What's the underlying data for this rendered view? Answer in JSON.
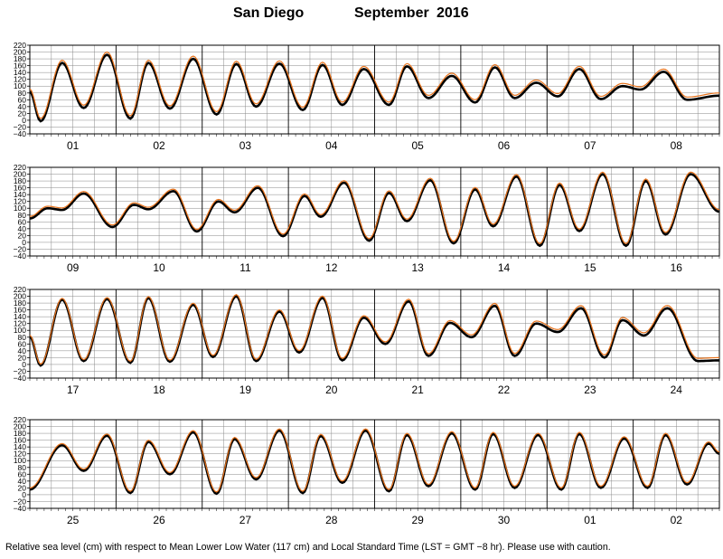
{
  "header": {
    "location": "San Diego",
    "month": "September",
    "year": "2016"
  },
  "footer": {
    "caption": "Relative sea level (cm) with respect to Mean Lower Low Water (117 cm) and Local Standard Time (LST = GMT −8 hr).  Please use with caution."
  },
  "colors": {
    "observed": "#000000",
    "predicted": "#e8731c",
    "grid": "#888888"
  },
  "chart_data": {
    "type": "line",
    "ylim": [
      -40,
      220
    ],
    "yticks": [
      -40,
      -20,
      0,
      20,
      40,
      60,
      80,
      100,
      120,
      140,
      160,
      180,
      200,
      220
    ],
    "ytick_labels": [
      "−40",
      "−20",
      "0",
      "20",
      "40",
      "60",
      "80",
      "100",
      "120",
      "140",
      "160",
      "180",
      "200",
      "220"
    ],
    "grid": true,
    "series_names": [
      "observed",
      "predicted"
    ],
    "panels": [
      {
        "days": [
          "01",
          "02",
          "03",
          "04",
          "05",
          "06",
          "07",
          "08"
        ],
        "extrema": [
          [
            0,
            84
          ],
          [
            3,
            -3
          ],
          [
            9,
            168
          ],
          [
            15,
            36
          ],
          [
            21.5,
            192
          ],
          [
            28,
            5
          ],
          [
            33,
            168
          ],
          [
            39,
            34
          ],
          [
            45.5,
            180
          ],
          [
            52,
            17
          ],
          [
            57.5,
            165
          ],
          [
            63,
            40
          ],
          [
            69.5,
            166
          ],
          [
            76,
            30
          ],
          [
            81.5,
            162
          ],
          [
            87,
            45
          ],
          [
            93,
            150
          ],
          [
            100,
            45
          ],
          [
            105,
            158
          ],
          [
            111,
            65
          ],
          [
            117.5,
            130
          ],
          [
            124,
            52
          ],
          [
            129.5,
            155
          ],
          [
            135,
            65
          ],
          [
            141,
            110
          ],
          [
            147,
            70
          ],
          [
            153,
            150
          ],
          [
            159,
            62
          ],
          [
            165,
            100
          ],
          [
            170,
            90
          ],
          [
            176.5,
            142
          ],
          [
            183,
            60
          ],
          [
            192,
            72
          ]
        ],
        "pred_offset": [
          [
            0,
            8
          ],
          [
            192,
            8
          ]
        ]
      },
      {
        "days": [
          "09",
          "10",
          "11",
          "12",
          "13",
          "14",
          "15",
          "16"
        ],
        "extrema": [
          [
            0,
            70
          ],
          [
            5,
            100
          ],
          [
            9,
            95
          ],
          [
            15,
            143
          ],
          [
            23,
            45
          ],
          [
            29,
            110
          ],
          [
            33,
            97
          ],
          [
            40,
            150
          ],
          [
            46.5,
            32
          ],
          [
            52.5,
            120
          ],
          [
            57,
            88
          ],
          [
            63.5,
            160
          ],
          [
            70.5,
            18
          ],
          [
            76.5,
            136
          ],
          [
            81,
            75
          ],
          [
            87.5,
            175
          ],
          [
            94.5,
            5
          ],
          [
            100,
            145
          ],
          [
            105,
            62
          ],
          [
            111.5,
            182
          ],
          [
            118,
            -3
          ],
          [
            124,
            155
          ],
          [
            129,
            47
          ],
          [
            135.5,
            193
          ],
          [
            142,
            -10
          ],
          [
            147.5,
            168
          ],
          [
            153,
            33
          ],
          [
            159.5,
            200
          ],
          [
            166,
            -10
          ],
          [
            171.5,
            180
          ],
          [
            177,
            23
          ],
          [
            184,
            200
          ],
          [
            192,
            90
          ]
        ],
        "pred_offset": [
          [
            0,
            6
          ],
          [
            192,
            6
          ]
        ]
      },
      {
        "days": [
          "17",
          "18",
          "19",
          "20",
          "21",
          "22",
          "23",
          "24"
        ],
        "extrema": [
          [
            0,
            82
          ],
          [
            3,
            -3
          ],
          [
            9,
            190
          ],
          [
            15,
            10
          ],
          [
            21.5,
            192
          ],
          [
            28,
            5
          ],
          [
            33,
            195
          ],
          [
            39,
            8
          ],
          [
            45.5,
            175
          ],
          [
            51,
            22
          ],
          [
            57.5,
            200
          ],
          [
            63,
            10
          ],
          [
            69.5,
            155
          ],
          [
            75,
            35
          ],
          [
            81.5,
            195
          ],
          [
            87,
            12
          ],
          [
            93,
            137
          ],
          [
            99,
            60
          ],
          [
            105.5,
            185
          ],
          [
            111,
            25
          ],
          [
            117,
            122
          ],
          [
            123,
            80
          ],
          [
            129.5,
            172
          ],
          [
            135,
            25
          ],
          [
            141,
            120
          ],
          [
            147,
            95
          ],
          [
            153.5,
            165
          ],
          [
            160,
            20
          ],
          [
            165,
            130
          ],
          [
            171,
            85
          ],
          [
            177.5,
            165
          ],
          [
            186,
            10
          ],
          [
            192,
            12
          ]
        ],
        "pred_offset": [
          [
            0,
            4
          ],
          [
            192,
            8
          ]
        ]
      },
      {
        "days": [
          "25",
          "26",
          "27",
          "28",
          "29",
          "30",
          "01",
          "02"
        ],
        "extrema": [
          [
            0,
            15
          ],
          [
            9,
            145
          ],
          [
            15,
            70
          ],
          [
            21.5,
            173
          ],
          [
            28,
            5
          ],
          [
            33,
            155
          ],
          [
            39,
            60
          ],
          [
            45.5,
            183
          ],
          [
            52,
            3
          ],
          [
            57,
            163
          ],
          [
            63,
            45
          ],
          [
            69.5,
            188
          ],
          [
            76,
            5
          ],
          [
            81,
            172
          ],
          [
            87,
            35
          ],
          [
            93.5,
            188
          ],
          [
            100,
            10
          ],
          [
            105,
            175
          ],
          [
            111,
            25
          ],
          [
            117.5,
            180
          ],
          [
            124,
            15
          ],
          [
            129,
            178
          ],
          [
            135,
            20
          ],
          [
            141.5,
            175
          ],
          [
            148,
            15
          ],
          [
            153,
            178
          ],
          [
            159,
            20
          ],
          [
            165.5,
            165
          ],
          [
            172,
            20
          ],
          [
            177,
            175
          ],
          [
            183,
            30
          ],
          [
            189,
            150
          ],
          [
            192,
            120
          ]
        ],
        "pred_offset": [
          [
            0,
            5
          ],
          [
            192,
            5
          ]
        ]
      }
    ]
  }
}
